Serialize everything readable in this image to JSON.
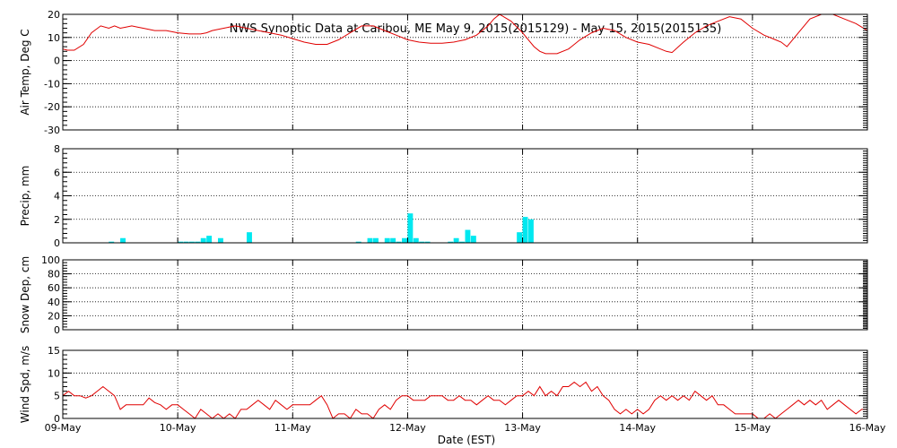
{
  "title": "NWS Synoptic Data at Caribou, ME   May  9, 2015(2015129) - May 15, 2015(2015135)",
  "xlabel": "Date (EST)",
  "colors": {
    "line": "#e00000",
    "bar": "#00e8f0",
    "axis": "#000000"
  },
  "chart_data": [
    {
      "type": "line",
      "name": "air-temp",
      "ylabel": "Air Temp, Deg C",
      "xlim": [
        0,
        7
      ],
      "ylim": [
        -30,
        20
      ],
      "yticks": [
        -30,
        -20,
        -10,
        0,
        10,
        20
      ],
      "x_tick_labels": [
        "09-May",
        "10-May",
        "11-May",
        "12-May",
        "13-May",
        "14-May",
        "15-May",
        "16-May"
      ],
      "grid": true,
      "x": [
        0,
        0.04,
        0.1,
        0.18,
        0.25,
        0.33,
        0.4,
        0.45,
        0.5,
        0.55,
        0.6,
        0.65,
        0.7,
        0.8,
        0.9,
        1.0,
        1.1,
        1.2,
        1.25,
        1.3,
        1.4,
        1.5,
        1.6,
        1.7,
        1.8,
        1.9,
        2.0,
        2.1,
        2.2,
        2.3,
        2.4,
        2.5,
        2.6,
        2.7,
        2.8,
        2.9,
        3.0,
        3.1,
        3.2,
        3.3,
        3.4,
        3.5,
        3.6,
        3.7,
        3.75,
        3.8,
        3.9,
        4.0,
        4.05,
        4.1,
        4.15,
        4.2,
        4.3,
        4.4,
        4.5,
        4.6,
        4.7,
        4.8,
        4.9,
        5.0,
        5.1,
        5.2,
        5.25,
        5.3,
        5.4,
        5.5,
        5.6,
        5.7,
        5.8,
        5.9,
        6.0,
        6.1,
        6.2,
        6.25,
        6.3,
        6.4,
        6.5,
        6.6,
        6.7,
        6.8,
        6.9,
        7.0
      ],
      "y": [
        5,
        4.5,
        4.5,
        7,
        12,
        15,
        14,
        15,
        14,
        14.5,
        15,
        14.5,
        14,
        13,
        13,
        12,
        11.5,
        11.5,
        12,
        13,
        14,
        15,
        14,
        13,
        12,
        11,
        9.5,
        8,
        7,
        7,
        9,
        12,
        15,
        15,
        13,
        11,
        9,
        8,
        7.5,
        7.5,
        8,
        9,
        11,
        15,
        18,
        21,
        17,
        12,
        9,
        6,
        4,
        3,
        3,
        5,
        9,
        12,
        14,
        13,
        10,
        8,
        7,
        5,
        4,
        3.5,
        8,
        12,
        15,
        17,
        19,
        18,
        14,
        11,
        9,
        8,
        6,
        12,
        18,
        21,
        20,
        18,
        16,
        13
      ]
    },
    {
      "type": "bar",
      "name": "precip",
      "ylabel": "Precip, mm",
      "xlim": [
        0,
        7
      ],
      "ylim": [
        0,
        8
      ],
      "yticks": [
        0,
        2,
        4,
        6,
        8
      ],
      "grid": true,
      "x": [
        0.4,
        0.5,
        1.0,
        1.05,
        1.1,
        1.15,
        1.2,
        1.25,
        1.35,
        1.6,
        2.55,
        2.65,
        2.7,
        2.8,
        2.85,
        2.9,
        2.95,
        3.0,
        3.05,
        3.1,
        3.15,
        3.35,
        3.4,
        3.45,
        3.5,
        3.55,
        3.95,
        4.0,
        4.05
      ],
      "values": [
        0.1,
        0.4,
        0.1,
        0.1,
        0.1,
        0.1,
        0.4,
        0.6,
        0.4,
        0.9,
        0.1,
        0.4,
        0.4,
        0.4,
        0.4,
        0.1,
        0.4,
        2.5,
        0.4,
        0.1,
        0.1,
        0.1,
        0.4,
        0.1,
        1.1,
        0.6,
        0.9,
        2.2,
        2.0
      ]
    },
    {
      "type": "line",
      "name": "snow-depth",
      "ylabel": "Snow Dep, cm",
      "xlim": [
        0,
        7
      ],
      "ylim": [
        0,
        100
      ],
      "yticks": [
        0,
        20,
        40,
        60,
        80,
        100
      ],
      "y_tick_labels": [
        "0",
        "20",
        "40",
        "60",
        "80",
        "100"
      ],
      "grid": true,
      "x": [],
      "y": []
    },
    {
      "type": "line",
      "name": "wind-speed",
      "ylabel": "Wind Spd, m/s",
      "xlim": [
        0,
        7
      ],
      "ylim": [
        0,
        15
      ],
      "yticks": [
        0,
        5,
        10,
        15
      ],
      "grid": true,
      "x": [
        0,
        0.05,
        0.1,
        0.15,
        0.2,
        0.25,
        0.3,
        0.35,
        0.4,
        0.45,
        0.5,
        0.55,
        0.6,
        0.65,
        0.7,
        0.75,
        0.8,
        0.85,
        0.9,
        0.95,
        1.0,
        1.05,
        1.1,
        1.15,
        1.2,
        1.25,
        1.3,
        1.35,
        1.4,
        1.45,
        1.5,
        1.55,
        1.6,
        1.65,
        1.7,
        1.75,
        1.8,
        1.85,
        1.9,
        1.95,
        2.0,
        2.05,
        2.1,
        2.15,
        2.2,
        2.25,
        2.3,
        2.35,
        2.4,
        2.45,
        2.5,
        2.55,
        2.6,
        2.65,
        2.7,
        2.75,
        2.8,
        2.85,
        2.9,
        2.95,
        3.0,
        3.05,
        3.1,
        3.15,
        3.2,
        3.25,
        3.3,
        3.35,
        3.4,
        3.45,
        3.5,
        3.55,
        3.6,
        3.65,
        3.7,
        3.75,
        3.8,
        3.85,
        3.9,
        3.95,
        4.0,
        4.05,
        4.1,
        4.15,
        4.2,
        4.25,
        4.3,
        4.35,
        4.4,
        4.45,
        4.5,
        4.55,
        4.6,
        4.65,
        4.7,
        4.75,
        4.8,
        4.85,
        4.9,
        4.95,
        5.0,
        5.05,
        5.1,
        5.15,
        5.2,
        5.25,
        5.3,
        5.35,
        5.4,
        5.45,
        5.5,
        5.55,
        5.6,
        5.65,
        5.7,
        5.75,
        5.8,
        5.85,
        5.9,
        5.95,
        6.0,
        6.05,
        6.1,
        6.15,
        6.2,
        6.25,
        6.3,
        6.35,
        6.4,
        6.45,
        6.5,
        6.55,
        6.6,
        6.65,
        6.7,
        6.75,
        6.8,
        6.85,
        6.9,
        6.95,
        7.0
      ],
      "y": [
        5,
        6,
        5,
        5,
        4.5,
        5,
        6,
        7,
        6,
        5,
        2,
        3,
        3,
        3,
        3,
        4.5,
        3.5,
        3,
        2,
        3,
        3,
        2,
        1,
        0,
        2,
        1,
        0,
        1,
        0,
        1,
        0,
        2,
        2,
        3,
        4,
        3,
        2,
        4,
        3,
        2,
        3,
        3,
        3,
        3,
        4,
        5,
        3,
        0,
        1,
        1,
        0,
        2,
        1,
        1,
        0,
        2,
        3,
        2,
        4,
        5,
        5,
        4,
        4,
        4,
        5,
        5,
        5,
        4,
        4,
        5,
        4,
        4,
        3,
        4,
        5,
        4,
        4,
        3,
        4,
        5,
        5,
        6,
        5,
        7,
        5,
        6,
        5,
        7,
        7,
        8,
        7,
        8,
        6,
        7,
        5,
        4,
        2,
        1,
        2,
        1,
        2,
        1,
        2,
        4,
        5,
        4,
        5,
        4,
        5,
        4,
        6,
        5,
        4,
        5,
        3,
        3,
        2,
        1,
        1,
        1,
        1,
        0,
        0,
        1,
        0,
        1,
        2,
        3,
        4,
        3,
        4,
        3,
        4,
        2,
        3,
        4,
        3,
        2,
        1,
        2,
        2
      ]
    }
  ]
}
